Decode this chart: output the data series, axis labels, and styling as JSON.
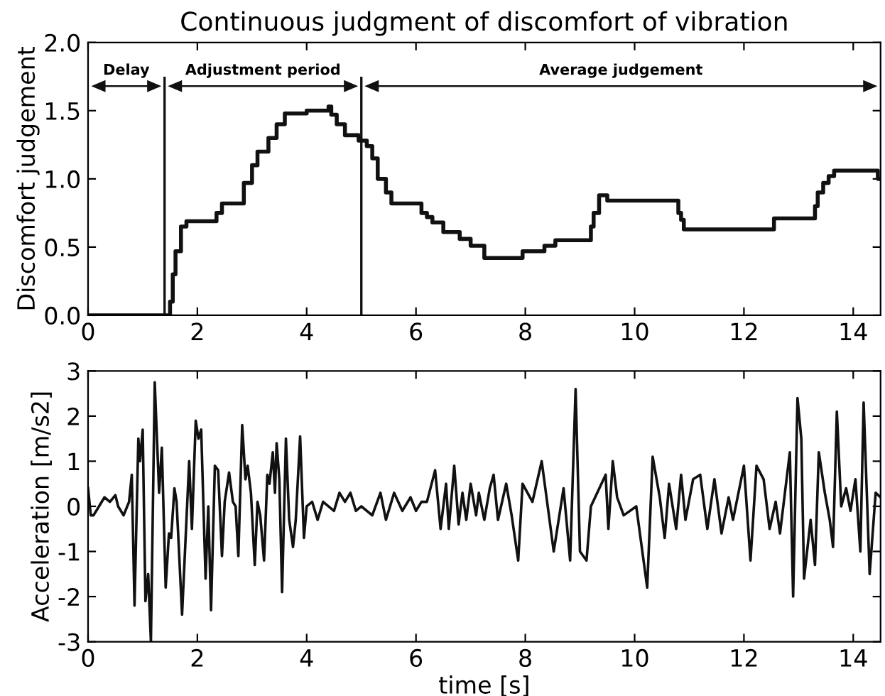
{
  "chart_data": [
    {
      "type": "step",
      "title": "Continuous judgment of discomfort of vibration",
      "ylabel": "Discomfort judgement",
      "x": [
        0,
        1.4,
        1.5,
        1.55,
        1.6,
        1.7,
        1.8,
        2.35,
        2.45,
        2.85,
        3.0,
        3.1,
        3.3,
        3.45,
        3.6,
        4.0,
        4.4,
        4.45,
        4.55,
        4.7,
        4.95,
        5.1,
        5.2,
        5.3,
        5.45,
        5.55,
        6.1,
        6.2,
        6.3,
        6.5,
        6.8,
        7.0,
        7.25,
        7.95,
        8.35,
        8.55,
        9.2,
        9.25,
        9.35,
        9.5,
        10.3,
        10.8,
        10.85,
        10.9,
        10.97,
        12.55,
        13.3,
        13.35,
        13.45,
        13.55,
        13.65,
        13.75,
        14.45,
        14.5
      ],
      "series": [
        {
          "color": "#111111",
          "values": [
            0,
            0,
            0.1,
            0.3,
            0.47,
            0.65,
            0.69,
            0.75,
            0.82,
            0.97,
            1.1,
            1.2,
            1.3,
            1.4,
            1.48,
            1.5,
            1.53,
            1.47,
            1.4,
            1.32,
            1.28,
            1.24,
            1.15,
            1.0,
            0.9,
            0.82,
            0.75,
            0.72,
            0.68,
            0.61,
            0.56,
            0.51,
            0.42,
            0.47,
            0.51,
            0.55,
            0.65,
            0.75,
            0.88,
            0.84,
            0.84,
            0.75,
            0.7,
            0.63,
            0.63,
            0.71,
            0.8,
            0.9,
            0.97,
            1.02,
            1.06,
            1.06,
            1.0,
            1.0
          ]
        }
      ],
      "xlim": [
        0,
        14.5
      ],
      "xticks": [
        0,
        2,
        4,
        6,
        8,
        10,
        12,
        14
      ],
      "ylim": [
        0,
        2.0
      ],
      "yticks": [
        {
          "value": 0,
          "label": "0.0"
        },
        {
          "value": 0.5,
          "label": "0.5"
        },
        {
          "value": 1.0,
          "label": "1.0"
        },
        {
          "value": 1.5,
          "label": "1.5"
        },
        {
          "value": 2.0,
          "label": "2.0"
        }
      ],
      "ref_lines": [
        {
          "axis": "x",
          "value": 1.4,
          "label": null
        },
        {
          "axis": "x",
          "value": 5.0,
          "label": null
        }
      ],
      "annotations": [
        "Delay",
        "Adjustment period",
        "Average judgement"
      ],
      "grid": false,
      "legend": false
    },
    {
      "type": "line",
      "xlabel": "time [s]",
      "ylabel": "Acceleration [m/s2]",
      "x": [
        0,
        0.05,
        0.1,
        0.2,
        0.3,
        0.4,
        0.5,
        0.55,
        0.65,
        0.75,
        0.8,
        0.85,
        0.92,
        0.95,
        1.0,
        1.05,
        1.1,
        1.15,
        1.22,
        1.3,
        1.35,
        1.42,
        1.48,
        1.52,
        1.58,
        1.62,
        1.72,
        1.85,
        1.9,
        1.97,
        2.02,
        2.07,
        2.15,
        2.2,
        2.25,
        2.32,
        2.38,
        2.45,
        2.5,
        2.58,
        2.65,
        2.7,
        2.75,
        2.82,
        2.88,
        2.92,
        2.98,
        3.05,
        3.1,
        3.15,
        3.22,
        3.28,
        3.32,
        3.38,
        3.42,
        3.45,
        3.5,
        3.55,
        3.62,
        3.68,
        3.75,
        3.8,
        3.88,
        3.95,
        4.0,
        4.1,
        4.2,
        4.3,
        4.5,
        4.6,
        4.7,
        4.8,
        4.9,
        5.0,
        5.2,
        5.35,
        5.45,
        5.6,
        5.75,
        5.9,
        6.0,
        6.1,
        6.2,
        6.35,
        6.45,
        6.55,
        6.6,
        6.7,
        6.78,
        6.85,
        6.92,
        7.0,
        7.1,
        7.15,
        7.25,
        7.35,
        7.42,
        7.5,
        7.65,
        7.75,
        7.87,
        7.95,
        8.13,
        8.3,
        8.52,
        8.7,
        8.82,
        8.92,
        9.0,
        9.12,
        9.2,
        9.47,
        9.52,
        9.6,
        9.68,
        9.8,
        10.03,
        10.23,
        10.33,
        10.46,
        10.55,
        10.63,
        10.76,
        10.85,
        10.93,
        11.07,
        11.2,
        11.33,
        11.46,
        11.59,
        11.72,
        11.8,
        12.0,
        12.12,
        12.23,
        12.36,
        12.47,
        12.58,
        12.66,
        12.75,
        12.84,
        12.9,
        12.98,
        13.05,
        13.1,
        13.22,
        13.3,
        13.37,
        13.48,
        13.57,
        13.63,
        13.7,
        13.78,
        13.87,
        13.95,
        14.04,
        14.13,
        14.19,
        14.3,
        14.41,
        14.5
      ],
      "series": [
        {
          "color": "#111111",
          "values": [
            0.4,
            -0.2,
            -0.2,
            0.0,
            0.2,
            0.1,
            0.25,
            0.0,
            -0.2,
            0.1,
            0.7,
            -2.2,
            1.5,
            1.0,
            1.7,
            -2.1,
            -1.5,
            -3.0,
            2.75,
            0.3,
            1.3,
            -1.8,
            -0.6,
            -0.7,
            0.4,
            0.1,
            -2.4,
            1.0,
            -0.5,
            1.9,
            1.5,
            1.7,
            -1.6,
            0.0,
            -2.3,
            0.9,
            0.8,
            -1.1,
            0.1,
            0.75,
            0.1,
            0.0,
            -1.1,
            1.8,
            0.6,
            0.9,
            0.3,
            -1.3,
            0.1,
            -0.2,
            -1.2,
            0.7,
            0.5,
            1.2,
            0.3,
            1.4,
            0.6,
            -1.9,
            1.5,
            -0.3,
            -0.9,
            -0.3,
            1.55,
            -0.7,
            0.0,
            0.1,
            -0.3,
            0.1,
            -0.1,
            0.3,
            0.1,
            0.3,
            -0.1,
            0.0,
            -0.2,
            0.3,
            -0.3,
            0.3,
            -0.1,
            0.2,
            -0.1,
            0.1,
            0.1,
            0.8,
            -0.5,
            0.5,
            -0.5,
            0.9,
            -0.4,
            0.3,
            -0.3,
            0.5,
            -0.2,
            0.3,
            -0.3,
            0.4,
            0.7,
            -0.3,
            0.5,
            -0.2,
            -1.2,
            0.5,
            0.1,
            1.0,
            -1.0,
            0.4,
            -1.2,
            2.6,
            -1.0,
            -1.2,
            0.0,
            0.7,
            -0.5,
            1.0,
            0.2,
            -0.2,
            0.0,
            -1.8,
            1.1,
            0.2,
            -0.7,
            0.5,
            -0.5,
            0.7,
            -0.3,
            0.6,
            0.7,
            -0.5,
            0.6,
            -0.6,
            0.2,
            -0.3,
            0.9,
            -1.2,
            0.9,
            0.6,
            -0.5,
            0.1,
            -0.6,
            0.3,
            1.2,
            -2.0,
            2.4,
            1.5,
            -1.6,
            -0.3,
            -1.3,
            1.2,
            0.3,
            -0.3,
            -0.9,
            2.1,
            0.0,
            0.4,
            -0.1,
            0.6,
            -1.0,
            2.3,
            -1.5,
            0.3,
            0.2
          ]
        }
      ],
      "xlim": [
        0,
        14.5
      ],
      "xticks": [
        0,
        2,
        4,
        6,
        8,
        10,
        12,
        14
      ],
      "ylim": [
        -3,
        3
      ],
      "yticks": [
        -3,
        -2,
        -1,
        0,
        1,
        2,
        3
      ],
      "grid": false,
      "legend": false
    }
  ]
}
